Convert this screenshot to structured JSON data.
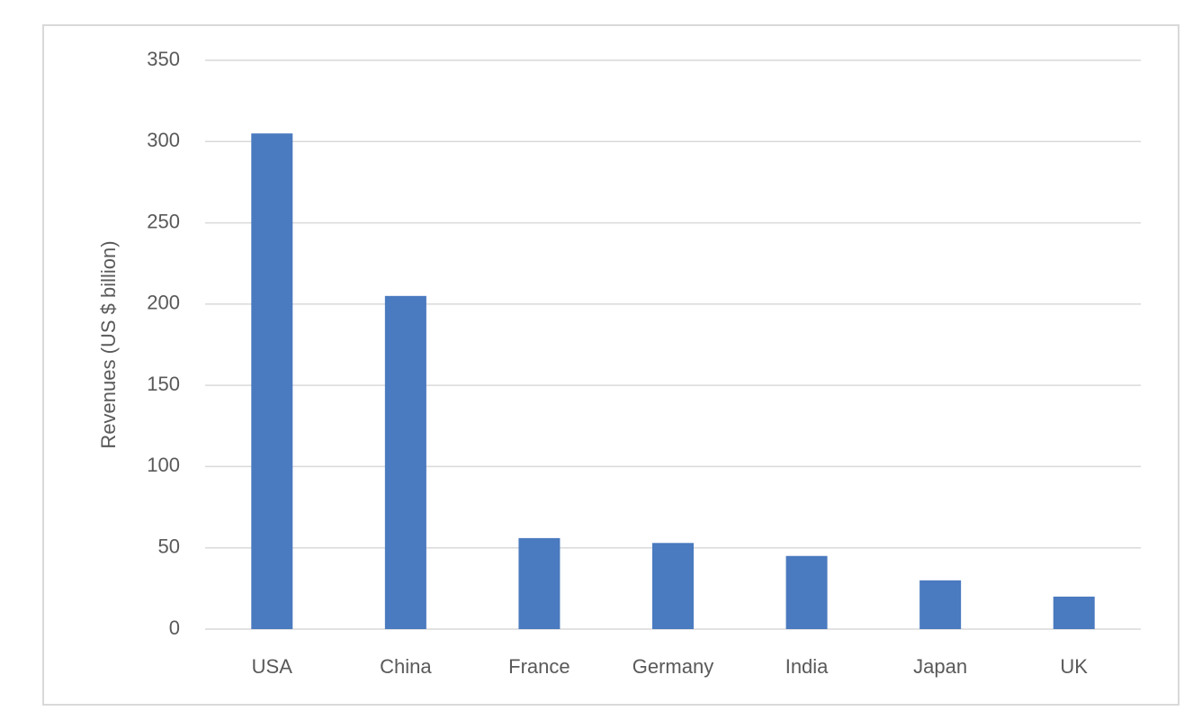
{
  "chart_data": {
    "type": "bar",
    "y_axis_label": "Revenues (US $ billion)",
    "categories": [
      "USA",
      "China",
      "France",
      "Germany",
      "India",
      "Japan",
      "UK"
    ],
    "values": [
      305,
      205,
      56,
      53,
      45,
      30,
      20
    ],
    "color": "#4a7abf",
    "ylim": [
      0,
      350
    ],
    "yticks": [
      0,
      50,
      100,
      150,
      200,
      250,
      300,
      350
    ],
    "grid": true
  }
}
